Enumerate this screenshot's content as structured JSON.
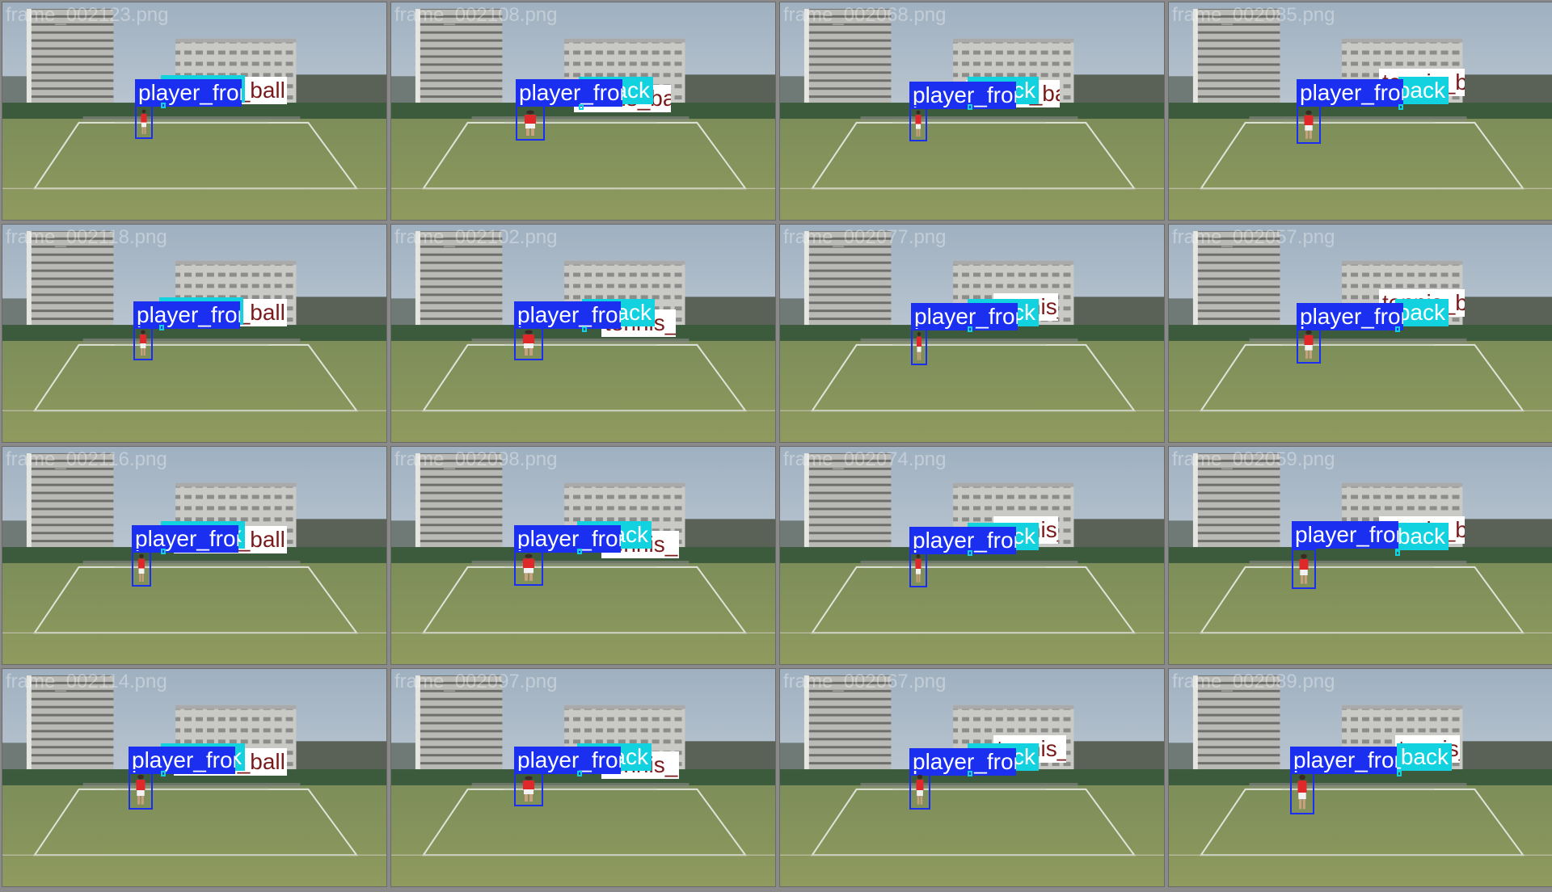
{
  "labels": {
    "player_front": "player_front",
    "player_back": "player_back",
    "tennis_ball": "tennis_ball"
  },
  "colors": {
    "player_front": "#1a2ff0",
    "player_back": "#12d2e0",
    "tennis_ball": "#ffffff",
    "tennis_ball_text": "#7a1a1a"
  },
  "tiles": [
    {
      "filename": "frame_002123.png"
    },
    {
      "filename": "frame_002108.png"
    },
    {
      "filename": "frame_002068.png"
    },
    {
      "filename": "frame_002085.png"
    },
    {
      "filename": "frame_002118.png"
    },
    {
      "filename": "frame_002102.png"
    },
    {
      "filename": "frame_002077.png"
    },
    {
      "filename": "frame_002057.png"
    },
    {
      "filename": "frame_002116.png"
    },
    {
      "filename": "frame_002098.png"
    },
    {
      "filename": "frame_002074.png"
    },
    {
      "filename": "frame_002059.png"
    },
    {
      "filename": "frame_002114.png"
    },
    {
      "filename": "frame_002097.png"
    },
    {
      "filename": "frame_002067.png"
    },
    {
      "filename": "frame_002089.png"
    }
  ]
}
